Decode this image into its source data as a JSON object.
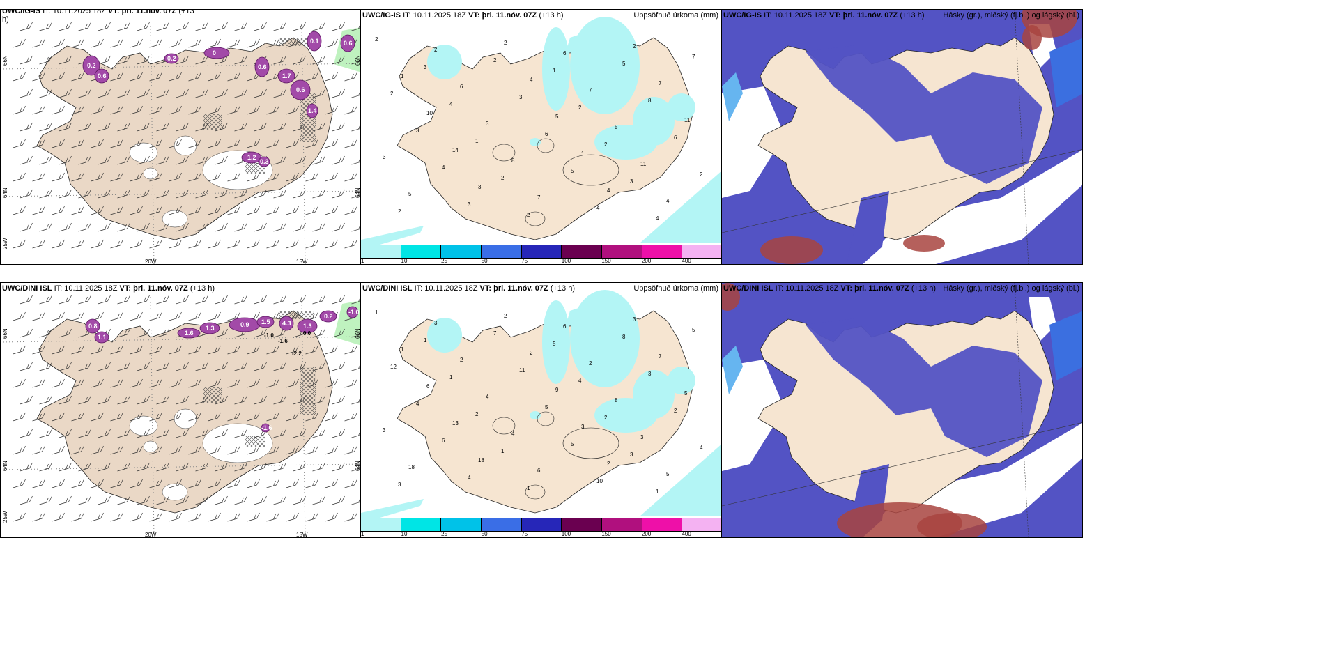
{
  "panels": [
    {
      "id": "p1",
      "title_model": "UWC/IG-IS",
      "title_it": "IT: 10.11.2025 18Z",
      "title_vt": "VT: þri. 11.nóv. 07Z",
      "title_lead": "(+13",
      "title_lead2": "h)",
      "right": "",
      "type": "wind",
      "axis": {
        "top_left": "66N",
        "right_top": "66N",
        "left_mid": "64N",
        "right_mid": "64N",
        "left_bottom": "25W",
        "bottom_a": "20W",
        "bottom_b": "15W"
      },
      "labels": [
        "0.2",
        "0.6",
        "0.2",
        "0",
        "0.6",
        "1.7",
        "0.6",
        "1.4",
        "1.2",
        "0.3",
        "0.1",
        "0.6"
      ]
    },
    {
      "id": "p2",
      "title_model": "UWC/IG-IS",
      "title_it": "IT: 10.11.2025 18Z",
      "title_vt": "VT: þri. 11.nóv. 07Z",
      "title_lead": "(+13 h)",
      "right": "Uppsöfnuð úrkoma (mm)",
      "type": "precip",
      "numbers": [
        "2",
        "1",
        "10",
        "14",
        "3",
        "2",
        "4",
        "5",
        "1",
        "4",
        "2",
        "7",
        "11",
        "3",
        "5",
        "2",
        "6",
        "3",
        "8",
        "7",
        "6",
        "7",
        "5",
        "11",
        "4",
        "7",
        "2",
        "3",
        "4",
        "3",
        "2",
        "3",
        "6",
        "5",
        "4",
        "5",
        "8",
        "6",
        "2",
        "2",
        "3",
        "4",
        "1",
        "2",
        "2",
        "1",
        "2",
        "2",
        "3",
        "4"
      ]
    },
    {
      "id": "p3",
      "title_model": "UWC/IG-IS",
      "title_it": "IT: 10.11.2025 18Z",
      "title_vt": "VT: þri. 11.nóv. 07Z",
      "title_lead": "(+13 h)",
      "right": "Hásky (gr.), miðský (fj.bl.) og lágský (bl.)",
      "type": "cloud"
    },
    {
      "id": "p4",
      "title_model": "UWC/DINI ISL",
      "title_it": "IT: 10.11.2025 18Z",
      "title_vt": "VT: þri. 11.nóv. 07Z",
      "title_lead": "(+13 h)",
      "right": "",
      "type": "wind",
      "axis": {
        "top_left": "66N",
        "right_top": "66N",
        "left_mid": "64N",
        "right_mid": "64N",
        "left_bottom": "25W",
        "bottom_a": "20W",
        "bottom_b": "15W"
      },
      "labels": [
        "0.8",
        "1.1",
        "1.6",
        "1.3",
        "0.9",
        "1.5",
        "4.3",
        "1.3",
        "0.2",
        "-1.0",
        "-1.6",
        "-2.2",
        "0.0"
      ]
    },
    {
      "id": "p5",
      "title_model": "UWC/DINI ISL",
      "title_it": "IT: 10.11.2025 18Z",
      "title_vt": "VT: þri. 11.nóv. 07Z",
      "title_lead": "(+13 h)",
      "right": "Uppsöfnuð úrkoma (mm)",
      "type": "precip",
      "numbers": [
        "1",
        "1",
        "6",
        "13",
        "18",
        "2",
        "2",
        "9",
        "3",
        "2",
        "3",
        "7",
        "5",
        "3",
        "18",
        "3",
        "2",
        "4",
        "4",
        "6",
        "6",
        "2",
        "8",
        "3",
        "5",
        "5",
        "12",
        "4",
        "6",
        "4",
        "7",
        "11",
        "5",
        "5",
        "10",
        "8",
        "3",
        "2",
        "4",
        "3",
        "1",
        "1",
        "2",
        "1",
        "1",
        "5",
        "4",
        "2",
        "3",
        "1"
      ]
    },
    {
      "id": "p6",
      "title_model": "UWC/DINI ISL",
      "title_it": "IT: 10.11.2025 18Z",
      "title_vt": "VT: þri. 11.nóv. 07Z",
      "title_lead": "(+13 h)",
      "right": "Hásky (gr.), miðský (fj.bl.) og lágský (bl.)",
      "type": "cloud"
    }
  ],
  "colorbar": {
    "ticks": [
      "1",
      "10",
      "25",
      "50",
      "75",
      "100",
      "150",
      "200",
      "400"
    ],
    "colors": [
      "#b3f5f5",
      "#00e5e5",
      "#00c2e8",
      "#3a6ee6",
      "#2626b8",
      "#6a0050",
      "#b0107e",
      "#ee10a8",
      "#f4b2f2"
    ]
  },
  "colors": {
    "land": "#f6e5d1",
    "landWind": "#ead8c6",
    "sea": "#ffffff",
    "precip": "#b3f5f5",
    "cloudDark": "#5353c4",
    "cloudMid": "#3b6fe0",
    "cloudLight": "#66b5f0",
    "cloudHigh": "#a8443f",
    "purple": "#a24aa8",
    "green": "#bff2bf"
  }
}
